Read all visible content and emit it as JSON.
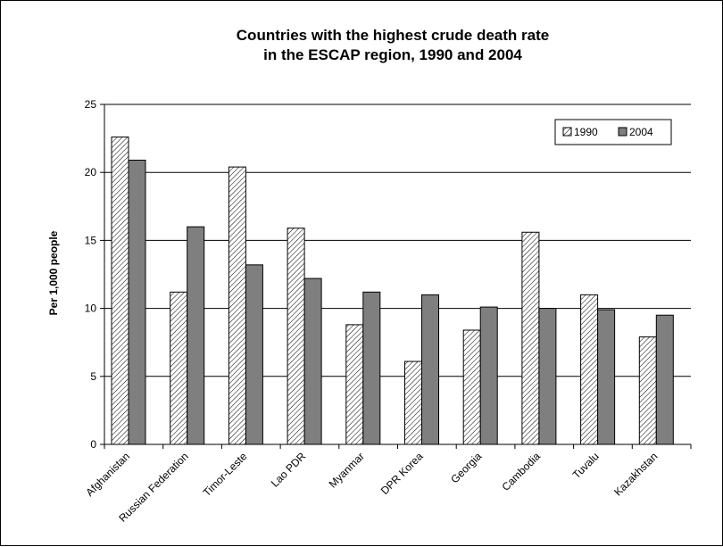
{
  "chart_data": {
    "type": "bar",
    "title": "Countries with the highest crude death rate\nin the ESCAP region, 1990 and 2004",
    "xlabel": "",
    "ylabel": "Per 1,000 people",
    "ylim": [
      0,
      25
    ],
    "yticks": [
      0,
      5,
      10,
      15,
      20,
      25
    ],
    "grid": true,
    "legend_position": "top-right",
    "categories": [
      "Afghanistan",
      "Russian Federation",
      "Timor-Leste",
      "Lao PDR",
      "Myanmar",
      "DPR Korea",
      "Georgia",
      "Cambodia",
      "Tuvalu",
      "Kazakhstan"
    ],
    "series": [
      {
        "name": "1990",
        "values": [
          22.6,
          11.2,
          20.4,
          15.9,
          8.8,
          6.1,
          8.4,
          15.6,
          11.0,
          7.9
        ],
        "fill": "hatched",
        "color": "#ffffff"
      },
      {
        "name": "2004",
        "values": [
          20.9,
          16.0,
          13.2,
          12.2,
          11.2,
          11.0,
          10.1,
          10.0,
          9.9,
          9.5
        ],
        "fill": "solid",
        "color": "#7f7f7f"
      }
    ]
  }
}
